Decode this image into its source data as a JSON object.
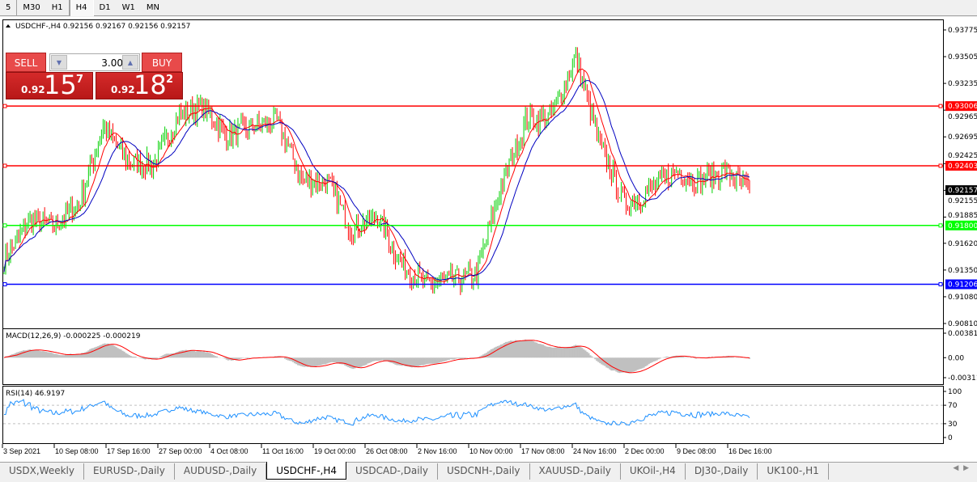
{
  "timeframes": [
    {
      "label": "5"
    },
    {
      "label": "M30"
    },
    {
      "label": "H1"
    },
    {
      "label": "H4",
      "active": true
    },
    {
      "label": "D1"
    },
    {
      "label": "W1"
    },
    {
      "label": "MN"
    }
  ],
  "chart": {
    "title": "USDCHF-,H4  0.92156 0.92167 0.92156 0.92157",
    "sell_label": "SELL",
    "buy_label": "BUY",
    "lot_value": "3.00",
    "sell_price": {
      "prefix": "0.92",
      "big": "15",
      "small": "7"
    },
    "buy_price": {
      "prefix": "0.92",
      "big": "18",
      "small": "2"
    },
    "price_ticks": [
      "0.93775",
      "0.93505",
      "0.93235",
      "0.92965",
      "0.92695",
      "0.92425",
      "0.92155",
      "0.91885",
      "0.91620",
      "0.91350",
      "0.91080",
      "0.90810"
    ],
    "hlines": [
      {
        "price": 0.93006,
        "label": "0.93006",
        "color": "#ff0000"
      },
      {
        "price": 0.92403,
        "label": "0.92403",
        "color": "#ff0000"
      },
      {
        "price": 0.918,
        "label": "0.91800",
        "color": "#00ff00"
      },
      {
        "price": 0.91206,
        "label": "0.91206",
        "color": "#0000ff"
      }
    ],
    "current_price": {
      "price": 0.92157,
      "label": "0.92157"
    },
    "colors": {
      "up": "#00d000",
      "down": "#ff0000",
      "ma_fast": "#ff0000",
      "ma_slow": "#0000c0",
      "macd_hist": "#c0c0c0",
      "macd_signal": "#ff0000",
      "rsi": "#1e90ff"
    },
    "approx_close": [
      0.9144,
      0.9185,
      0.918,
      0.92,
      0.928,
      0.9245,
      0.924,
      0.929,
      0.93,
      0.927,
      0.928,
      0.9285,
      0.9225,
      0.9225,
      0.9175,
      0.919,
      0.914,
      0.912,
      0.9125,
      0.913,
      0.922,
      0.9285,
      0.929,
      0.935,
      0.926,
      0.92,
      0.9215,
      0.9235,
      0.9225,
      0.9235,
      0.9216
    ],
    "price_range": [
      0.9081,
      0.93775
    ],
    "time_labels": [
      "3 Sep 2021",
      "10 Sep 08:00",
      "17 Sep 16:00",
      "27 Sep 00:00",
      "4 Oct 08:00",
      "11 Oct 16:00",
      "19 Oct 00:00",
      "26 Oct 08:00",
      "2 Nov 16:00",
      "10 Nov 00:00",
      "17 Nov 08:00",
      "24 Nov 16:00",
      "2 Dec 00:00",
      "9 Dec 08:00",
      "16 Dec 16:00"
    ]
  },
  "macd": {
    "label": "MACD(12,26,9) -0.000225 -0.000219",
    "ticks": [
      "0.003811",
      "0.00",
      "-0.003115"
    ],
    "range": [
      -0.003115,
      0.003811
    ]
  },
  "rsi": {
    "label": "RSI(14) 46.9197",
    "ticks": [
      "100",
      "70",
      "30",
      "0"
    ],
    "levels": [
      70,
      30
    ]
  },
  "tabs": [
    {
      "label": "USDX,Weekly"
    },
    {
      "label": "EURUSD-,Daily"
    },
    {
      "label": "AUDUSD-,Daily"
    },
    {
      "label": "USDCHF-,H4",
      "active": true
    },
    {
      "label": "USDCAD-,Daily"
    },
    {
      "label": "USDCNH-,Daily"
    },
    {
      "label": "XAUUSD-,Daily"
    },
    {
      "label": "UKOil-,H4"
    },
    {
      "label": "DJ30-,Daily"
    },
    {
      "label": "UK100-,H1"
    }
  ],
  "scroll_icons": [
    "arrow-left",
    "arrow-right"
  ]
}
